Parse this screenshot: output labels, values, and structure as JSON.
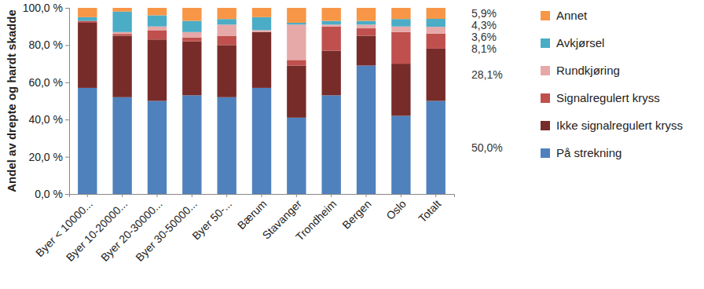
{
  "chart_data": {
    "type": "bar",
    "stacked": true,
    "grid": false,
    "legend": "right",
    "data_labels": true,
    "y_label": "Andel av drepte og hardt skadde",
    "categories": [
      "Byer < 10000...",
      "Byer 10-20000...",
      "Byer 20-30000...",
      "Byer 30-50000...",
      "Byer 50-...",
      "Bærum",
      "Stavanger",
      "Trondheim",
      "Bergen",
      "Oslo",
      "Totalt"
    ],
    "ylim": [
      0,
      100
    ],
    "yticks": [
      {
        "value": 0,
        "label": "0,0 %"
      },
      {
        "value": 20,
        "label": "20,0 %"
      },
      {
        "value": 40,
        "label": "40,0 %"
      },
      {
        "value": 60,
        "label": "60,0 %"
      },
      {
        "value": 80,
        "label": "80,0 %"
      },
      {
        "value": 100,
        "label": "100,0 %"
      }
    ],
    "series": [
      {
        "name": "På strekning",
        "color": "#4f81bd",
        "values": [
          57,
          52,
          50,
          53,
          52,
          57,
          41,
          53,
          69,
          42,
          50.0
        ],
        "value_labels": [
          null,
          null,
          null,
          null,
          null,
          null,
          null,
          null,
          null,
          null,
          "50,0%"
        ]
      },
      {
        "name": "Ikke signalregulert kryss",
        "color": "#772c2a",
        "values": [
          35,
          33,
          33,
          29,
          28,
          30,
          28,
          24,
          16,
          28,
          28.1
        ],
        "value_labels": [
          null,
          null,
          null,
          null,
          null,
          null,
          null,
          null,
          null,
          null,
          "28,1%"
        ]
      },
      {
        "name": "Signalregulert kryss",
        "color": "#c0504d",
        "values": [
          1,
          1,
          5,
          2,
          5,
          0,
          3,
          13,
          4,
          17,
          8.1
        ],
        "value_labels": [
          null,
          null,
          null,
          null,
          null,
          null,
          null,
          null,
          null,
          null,
          "8,1%"
        ]
      },
      {
        "name": "Rundkjøring",
        "color": "#e6a9a8",
        "values": [
          0,
          1,
          2,
          3,
          6,
          1,
          19,
          1,
          2,
          3,
          3.6
        ],
        "value_labels": [
          null,
          null,
          null,
          null,
          null,
          null,
          null,
          null,
          null,
          null,
          "3,6%"
        ]
      },
      {
        "name": "Avkjørsel",
        "color": "#4bacc6",
        "values": [
          2,
          11,
          6,
          6,
          3,
          7,
          1,
          2,
          2,
          4,
          4.3
        ],
        "value_labels": [
          null,
          null,
          null,
          null,
          null,
          null,
          null,
          null,
          null,
          null,
          "4,3%"
        ]
      },
      {
        "name": "Annet",
        "color": "#f79646",
        "values": [
          5,
          2,
          4,
          7,
          6,
          5,
          8,
          7,
          7,
          6,
          5.9
        ],
        "value_labels": [
          null,
          null,
          null,
          null,
          null,
          null,
          null,
          null,
          null,
          null,
          "5,9%"
        ]
      }
    ]
  }
}
